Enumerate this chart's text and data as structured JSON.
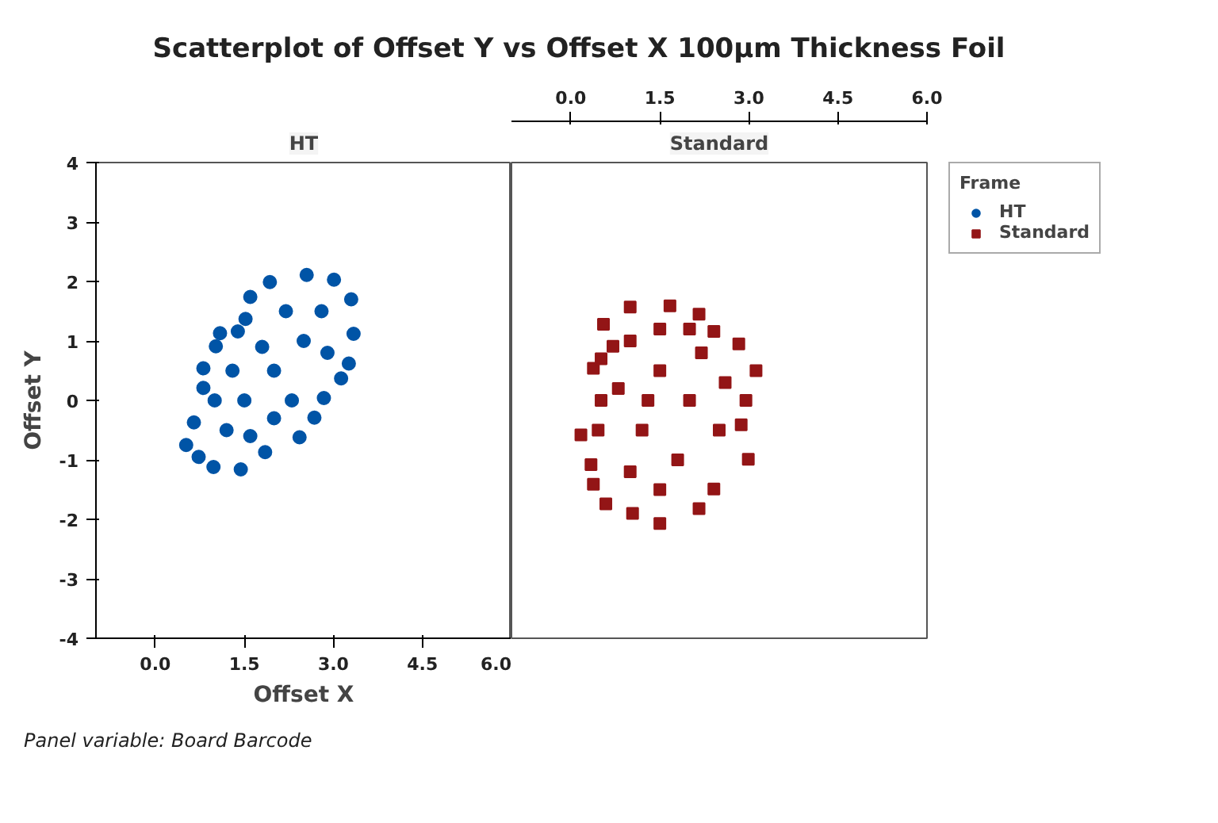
{
  "chart_data": [
    {
      "type": "scatter",
      "title": "Scatterplot of Offset Y vs Offset X 100µm Thickness Foil",
      "subtitle": "HT",
      "xlabel": "Offset X",
      "ylabel": "Offset Y",
      "annotations": [
        "Panel variable: Board Barcode"
      ],
      "marker": "circle",
      "grid": false,
      "xlim": [
        -1,
        6
      ],
      "xticks": [
        {
          "value": 0,
          "label": "0.0"
        },
        {
          "value": 1.5,
          "label": "1.5"
        },
        {
          "value": 3,
          "label": "3.0"
        },
        {
          "value": 4.5,
          "label": "4.5"
        },
        {
          "value": 6,
          "label": "6.0"
        }
      ],
      "ylim": [
        -4,
        4
      ],
      "yticks": [
        -4,
        -3,
        -2,
        -1,
        0,
        1,
        2,
        3,
        4
      ],
      "series": [
        {
          "name": "HT",
          "color": "#0054a6",
          "x": [
            2.55,
            1.93,
            1.6,
            3.01,
            3.3,
            3.34,
            3.26,
            3.13,
            2.84,
            2.68,
            2.43,
            1.85,
            1.44,
            0.98,
            0.73,
            0.52,
            0.65,
            0.81,
            0.81,
            1.02,
            1.09,
            1.39,
            1.52,
            1.5,
            2.0,
            2.5,
            2.2,
            1.2,
            1.8,
            1.0,
            2.8,
            2.3,
            1.6,
            2.9,
            1.3,
            2.0
          ],
          "values": [
            2.11,
            1.99,
            1.74,
            2.03,
            1.7,
            1.12,
            0.62,
            0.37,
            0.04,
            -0.29,
            -0.62,
            -0.87,
            -1.16,
            -1.12,
            -0.95,
            -0.75,
            -0.37,
            0.21,
            0.54,
            0.91,
            1.13,
            1.16,
            1.37,
            0.0,
            0.5,
            1.0,
            1.5,
            -0.5,
            0.9,
            0.0,
            1.5,
            0.0,
            -0.6,
            0.8,
            0.5,
            -0.3
          ]
        }
      ]
    },
    {
      "type": "scatter",
      "subtitle": "Standard",
      "legend": "right",
      "legend_title": "Frame",
      "marker": "square",
      "grid": false,
      "tick_labels": "x",
      "xlim": [
        -1,
        6
      ],
      "xticks": [
        {
          "value": 0,
          "label": "0.0"
        },
        {
          "value": 1.5,
          "label": "1.5"
        },
        {
          "value": 3,
          "label": "3.0"
        },
        {
          "value": 4.5,
          "label": "4.5"
        },
        {
          "value": 6,
          "label": "6.0"
        }
      ],
      "ylim": [
        -4,
        4
      ],
      "series": [
        {
          "name": "Standard",
          "color": "#931516",
          "x": [
            0.17,
            0.55,
            1.0,
            1.67,
            2.16,
            2.41,
            2.83,
            3.12,
            2.95,
            2.87,
            2.99,
            2.41,
            2.16,
            1.5,
            1.04,
            0.59,
            0.38,
            0.34,
            0.46,
            0.51,
            0.38,
            0.51,
            0.71,
            1.0,
            1.5,
            2.0,
            1.2,
            1.8,
            2.5,
            1.0,
            2.2,
            1.5,
            0.8,
            2.6,
            1.5,
            2.0,
            1.3
          ],
          "values": [
            -0.58,
            1.28,
            1.57,
            1.59,
            1.45,
            1.16,
            0.95,
            0.5,
            0.0,
            -0.41,
            -0.99,
            -1.49,
            -1.82,
            -2.07,
            -1.9,
            -1.74,
            -1.41,
            -1.08,
            -0.5,
            0.0,
            0.54,
            0.7,
            0.91,
            1.0,
            0.5,
            0.0,
            -0.5,
            -1.0,
            -0.5,
            -1.2,
            0.8,
            1.2,
            0.2,
            0.3,
            -1.5,
            1.2,
            0.0
          ]
        }
      ]
    }
  ]
}
